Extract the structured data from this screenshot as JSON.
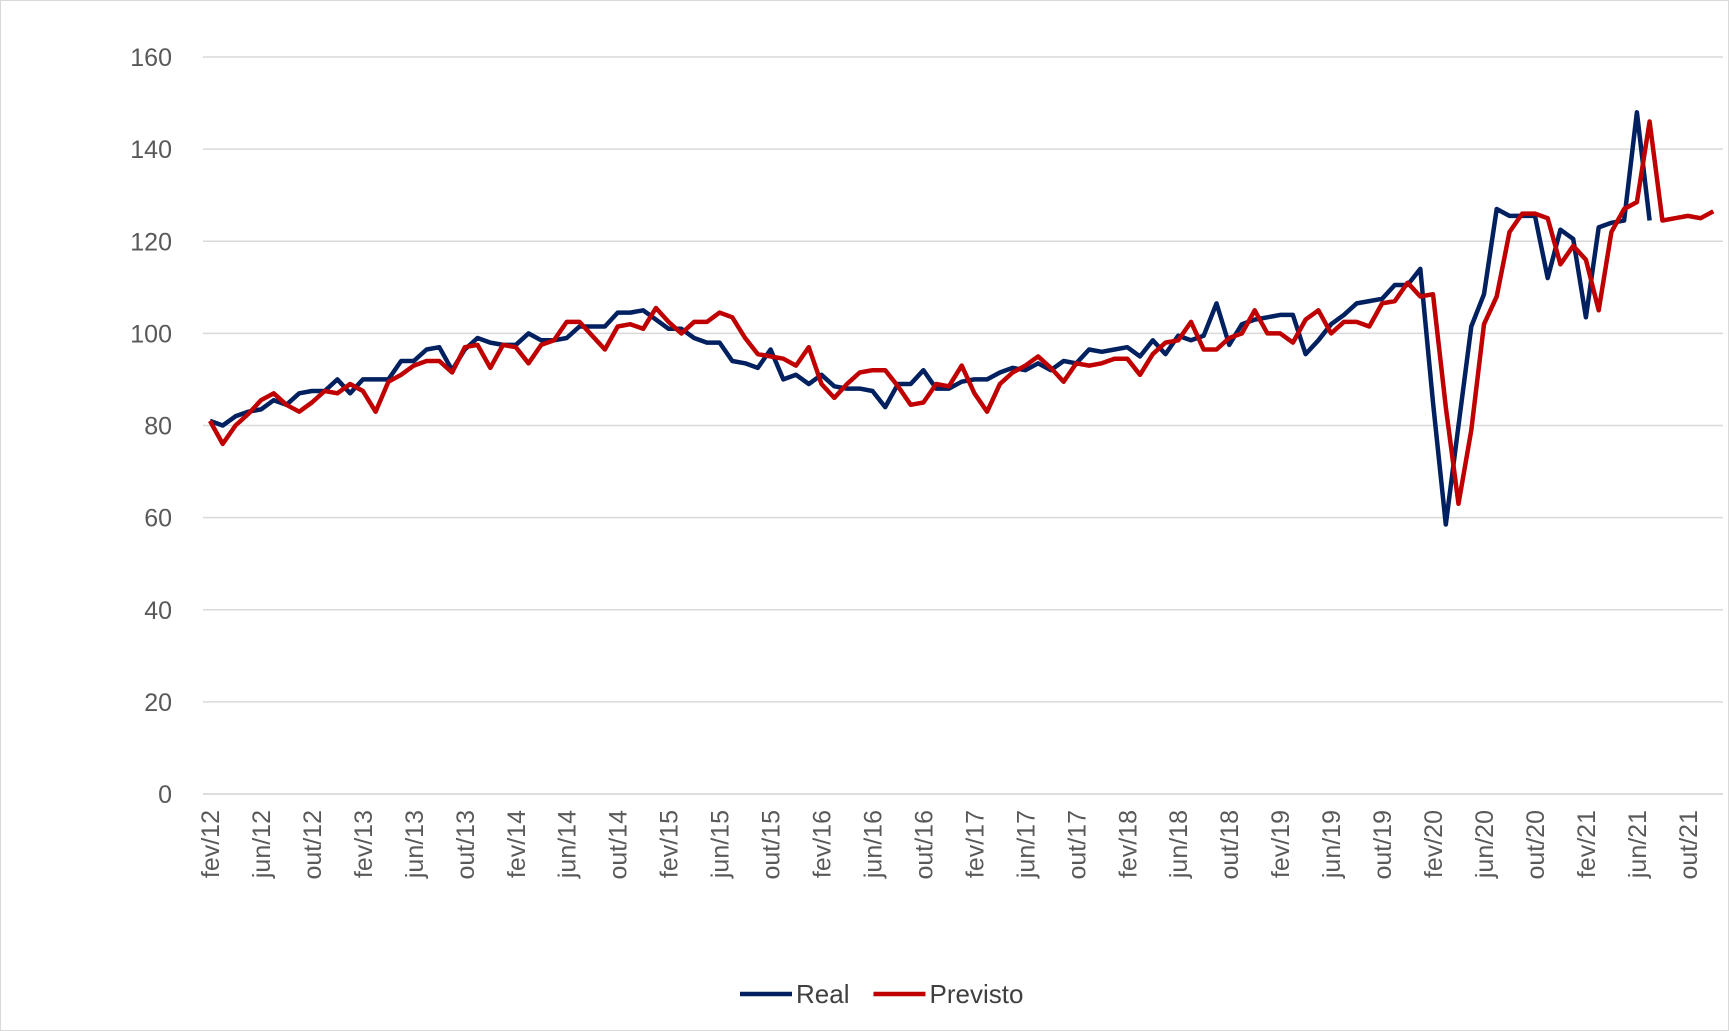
{
  "chart_data": {
    "type": "line",
    "categories": [
      "fev/12",
      null,
      null,
      null,
      "jun/12",
      null,
      null,
      null,
      "out/12",
      null,
      null,
      null,
      "fev/13",
      null,
      null,
      null,
      "jun/13",
      null,
      null,
      null,
      "out/13",
      null,
      null,
      null,
      "fev/14",
      null,
      null,
      null,
      "jun/14",
      null,
      null,
      null,
      "out/14",
      null,
      null,
      null,
      "fev/15",
      null,
      null,
      null,
      "jun/15",
      null,
      null,
      null,
      "out/15",
      null,
      null,
      null,
      "fev/16",
      null,
      null,
      null,
      "jun/16",
      null,
      null,
      null,
      "out/16",
      null,
      null,
      null,
      "fev/17",
      null,
      null,
      null,
      "jun/17",
      null,
      null,
      null,
      "out/17",
      null,
      null,
      null,
      "fev/18",
      null,
      null,
      null,
      "jun/18",
      null,
      null,
      null,
      "out/18",
      null,
      null,
      null,
      "fev/19",
      null,
      null,
      null,
      "jun/19",
      null,
      null,
      null,
      "out/19",
      null,
      null,
      null,
      "fev/20",
      null,
      null,
      null,
      "jun/20",
      null,
      null,
      null,
      "out/20",
      null,
      null,
      null,
      "fev/21",
      null,
      null,
      null,
      "jun/21",
      null,
      null,
      null,
      "out/21",
      null,
      null
    ],
    "series": [
      {
        "name": "Real",
        "color": "#002060",
        "values": [
          81,
          80,
          82,
          83,
          83.5,
          85.5,
          84.5,
          87,
          87.5,
          87.5,
          90,
          87,
          90,
          90,
          90,
          94,
          94,
          96.5,
          97,
          92,
          96.5,
          99,
          98,
          97.5,
          97.5,
          100,
          98.5,
          98.5,
          99,
          101.5,
          101.5,
          101.5,
          104.5,
          104.5,
          105,
          103,
          101,
          101,
          99,
          98,
          98,
          94,
          93.5,
          92.5,
          96.5,
          90,
          91,
          89,
          91,
          88.5,
          88,
          88,
          87.5,
          84,
          89,
          89,
          92,
          88,
          88,
          89.5,
          90,
          90,
          91.5,
          92.5,
          92,
          93.5,
          92,
          94,
          93.5,
          96.5,
          96,
          96.5,
          97,
          95,
          98.5,
          95.5,
          99.5,
          98.5,
          99.5,
          106.5,
          97.5,
          102,
          103,
          103.5,
          104,
          104,
          95.5,
          98.5,
          102,
          104,
          106.5,
          107,
          107.5,
          110.5,
          110.5,
          114,
          85,
          58.5,
          80,
          101.5,
          108.5,
          127,
          125.5,
          125.5,
          125.5,
          112,
          122.5,
          120.5,
          103.5,
          123,
          124,
          124.5,
          148,
          124.5,
          null,
          null,
          null,
          null,
          null
        ]
      },
      {
        "name": "Previsto",
        "color": "#c00000",
        "values": [
          81,
          76,
          80,
          82.5,
          85.5,
          87,
          84.5,
          83,
          85,
          87.5,
          87,
          89,
          87.5,
          83,
          89.5,
          91,
          93,
          94,
          94,
          91.5,
          97,
          97.5,
          92.5,
          97.5,
          97,
          93.5,
          97.5,
          98.5,
          102.5,
          102.5,
          99.5,
          96.5,
          101.5,
          102,
          101,
          105.5,
          102.5,
          100,
          102.5,
          102.5,
          104.5,
          103.5,
          99,
          95.5,
          95,
          94.5,
          93,
          97,
          89,
          86,
          89,
          91.5,
          92,
          92,
          88.5,
          84.5,
          85,
          89,
          88.5,
          93,
          87,
          83,
          89,
          91.5,
          93,
          95,
          92.5,
          89.5,
          93.5,
          93,
          93.5,
          94.5,
          94.5,
          91,
          95.5,
          98,
          98.5,
          102.5,
          96.5,
          96.5,
          99,
          100,
          105,
          100,
          100,
          98,
          103,
          105,
          100,
          102.5,
          102.5,
          101.5,
          106.5,
          107,
          111,
          108,
          108.5,
          84,
          63,
          79,
          102,
          108,
          122,
          126,
          126,
          125,
          115,
          119,
          116,
          105,
          122,
          127,
          128.5,
          146,
          124.5,
          125,
          125.5,
          125,
          126.5
        ]
      }
    ],
    "ylim": [
      0,
      160
    ],
    "yticks": [
      0,
      20,
      40,
      60,
      80,
      100,
      120,
      140,
      160
    ],
    "grid": true,
    "legend": "bottom"
  }
}
